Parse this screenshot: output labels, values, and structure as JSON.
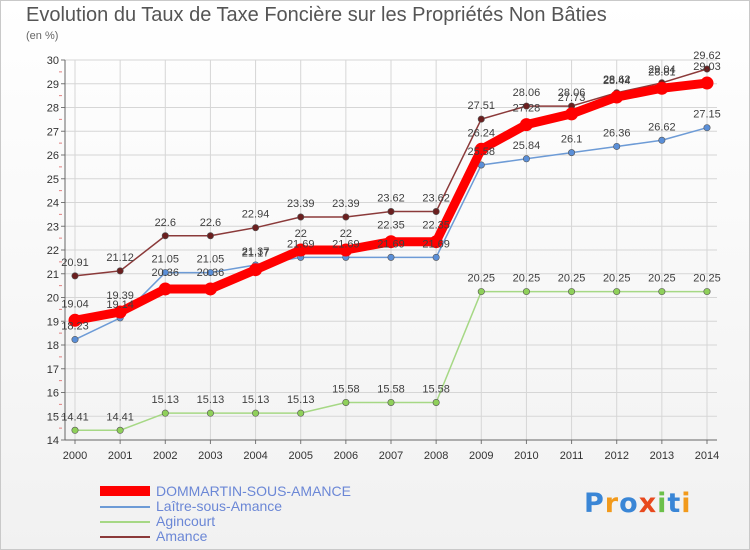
{
  "chart_data": {
    "type": "line",
    "title": "Evolution du Taux de Taxe Foncière sur les Propriétés Non Bâties",
    "subtitle": "(en %)",
    "x": [
      "2000",
      "2001",
      "2002",
      "2003",
      "2004",
      "2005",
      "2006",
      "2007",
      "2008",
      "2009",
      "2010",
      "2011",
      "2012",
      "2013",
      "2014"
    ],
    "ylim": [
      14,
      30
    ],
    "yticks": [
      "14",
      "15",
      "16",
      "17",
      "18",
      "19",
      "20",
      "21",
      "22",
      "23",
      "24",
      "25",
      "26",
      "27",
      "28",
      "29",
      "30"
    ],
    "grid": true,
    "legend_position": "bottom-left",
    "series": [
      {
        "name": "DOMMARTIN-SOUS-AMANCE",
        "color": "#ff0000",
        "values": [
          19.04,
          19.39,
          20.36,
          20.36,
          21.17,
          22,
          22,
          22.35,
          22.35,
          26.24,
          27.28,
          27.73,
          28.44,
          28.81,
          29.03
        ],
        "labels": [
          "19.04",
          "19.39",
          "20.36",
          "20.36",
          "21.17",
          "22",
          "22",
          "22.35",
          "22.35",
          "26.24",
          "27.28",
          "27.73",
          "28.44",
          "28.81",
          "29.03"
        ]
      },
      {
        "name": "Laître-sous-Amance",
        "color": "#6d9bd6",
        "values": [
          18.23,
          19.14,
          21.05,
          21.05,
          21.37,
          21.69,
          21.69,
          21.69,
          21.69,
          25.58,
          25.84,
          26.1,
          26.36,
          26.62,
          27.15
        ],
        "labels": [
          "18.23",
          "19.14",
          "21.05",
          "21.05",
          "21.37",
          "21.69",
          "21.69",
          "21.69",
          "21.69",
          "25.58",
          "25.84",
          "26.1",
          "26.36",
          "26.62",
          "27.15"
        ]
      },
      {
        "name": "Agincourt",
        "color": "#a6d885",
        "values": [
          14.41,
          14.41,
          15.13,
          15.13,
          15.13,
          15.13,
          15.58,
          15.58,
          15.58,
          20.25,
          20.25,
          20.25,
          20.25,
          20.25,
          20.25
        ],
        "labels": [
          "14.41",
          "14.41",
          "15.13",
          "15.13",
          "15.13",
          "15.13",
          "15.58",
          "15.58",
          "15.58",
          "20.25",
          "20.25",
          "20.25",
          "20.25",
          "20.25",
          "20.25"
        ]
      },
      {
        "name": "Amance",
        "color": "#8b3a3a",
        "values": [
          20.91,
          21.12,
          22.6,
          22.6,
          22.94,
          23.39,
          23.39,
          23.62,
          23.62,
          27.51,
          28.06,
          28.06,
          28.62,
          29.04,
          29.62
        ],
        "labels": [
          "20.91",
          "21.12",
          "22.6",
          "22.6",
          "22.94",
          "23.39",
          "23.39",
          "23.62",
          "23.62",
          "27.51",
          "28.06",
          "28.06",
          "28.62",
          "29.04",
          "29.62"
        ]
      }
    ]
  },
  "logo": {
    "text": "Proxiti"
  }
}
